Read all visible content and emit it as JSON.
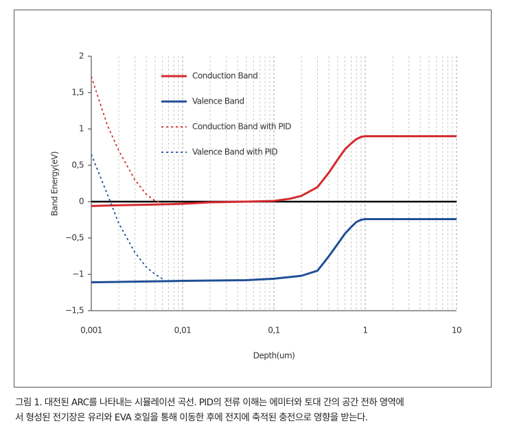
{
  "chart_data": {
    "type": "line",
    "xlabel": "Depth(um)",
    "ylabel": "Band Energy(eV)",
    "xscale": "log",
    "xgrid": true,
    "xlim": [
      0.001,
      10
    ],
    "xticks": [
      {
        "value": 0.001,
        "label": "0,001"
      },
      {
        "value": 0.01,
        "label": "0,01"
      },
      {
        "value": 0.1,
        "label": "0,1"
      },
      1,
      10
    ],
    "ylim": [
      -1.5,
      2
    ],
    "yticks": [
      {
        "value": 2,
        "label": "2"
      },
      {
        "value": 1.5,
        "label": "1,5"
      },
      1,
      {
        "value": 0.5,
        "label": "0,5"
      },
      0,
      {
        "value": -0.5,
        "label": "−0,5"
      },
      {
        "value": -1,
        "label": "−1"
      },
      {
        "value": -1.5,
        "label": "−1,5"
      }
    ],
    "series": [
      {
        "name": "Conduction Band",
        "color": "#d42a2e",
        "dashed": false,
        "x": [
          0.001,
          0.002,
          0.005,
          0.01,
          0.02,
          0.05,
          0.1,
          0.15,
          0.2,
          0.3,
          0.4,
          0.5,
          0.6,
          0.7,
          0.8,
          0.9,
          1,
          10
        ],
        "values": [
          -0.06,
          -0.05,
          -0.04,
          -0.03,
          -0.01,
          0,
          0.01,
          0.04,
          0.08,
          0.2,
          0.4,
          0.58,
          0.72,
          0.8,
          0.86,
          0.89,
          0.9,
          0.9
        ]
      },
      {
        "name": "Valence Band",
        "color": "#1f4e96",
        "dashed": false,
        "x": [
          0.001,
          0.01,
          0.05,
          0.1,
          0.2,
          0.3,
          0.4,
          0.5,
          0.6,
          0.7,
          0.8,
          0.9,
          1,
          10
        ],
        "values": [
          -1.11,
          -1.09,
          -1.08,
          -1.06,
          -1.02,
          -0.95,
          -0.75,
          -0.58,
          -0.44,
          -0.35,
          -0.28,
          -0.25,
          -0.24,
          -0.24
        ]
      },
      {
        "name": "Conduction Band with PID",
        "color": "#d42a2e",
        "dashed": true,
        "x": [
          0.001,
          0.0015,
          0.002,
          0.003,
          0.004,
          0.005,
          0.006
        ],
        "values": [
          1.72,
          1.05,
          0.7,
          0.3,
          0.1,
          0.01,
          -0.02
        ]
      },
      {
        "name": "Valence Band with PID",
        "color": "#1f4e96",
        "dashed": true,
        "x": [
          0.001,
          0.0015,
          0.002,
          0.003,
          0.004,
          0.005,
          0.006
        ],
        "values": [
          0.65,
          0.1,
          -0.3,
          -0.7,
          -0.9,
          -1.0,
          -1.06
        ]
      }
    ]
  },
  "caption": [
    "그림 1. 대전된 ARC를 나타내는 시뮬레이션 곡선. PID의 전류 이해는 에미터와 토대 간의 공간 전하 영역에",
    "서 형성된 전기장은 유리와 EVA 호일을 통해 이동한 후에 전지에 축적된 충전으로 영향을 받는다."
  ]
}
